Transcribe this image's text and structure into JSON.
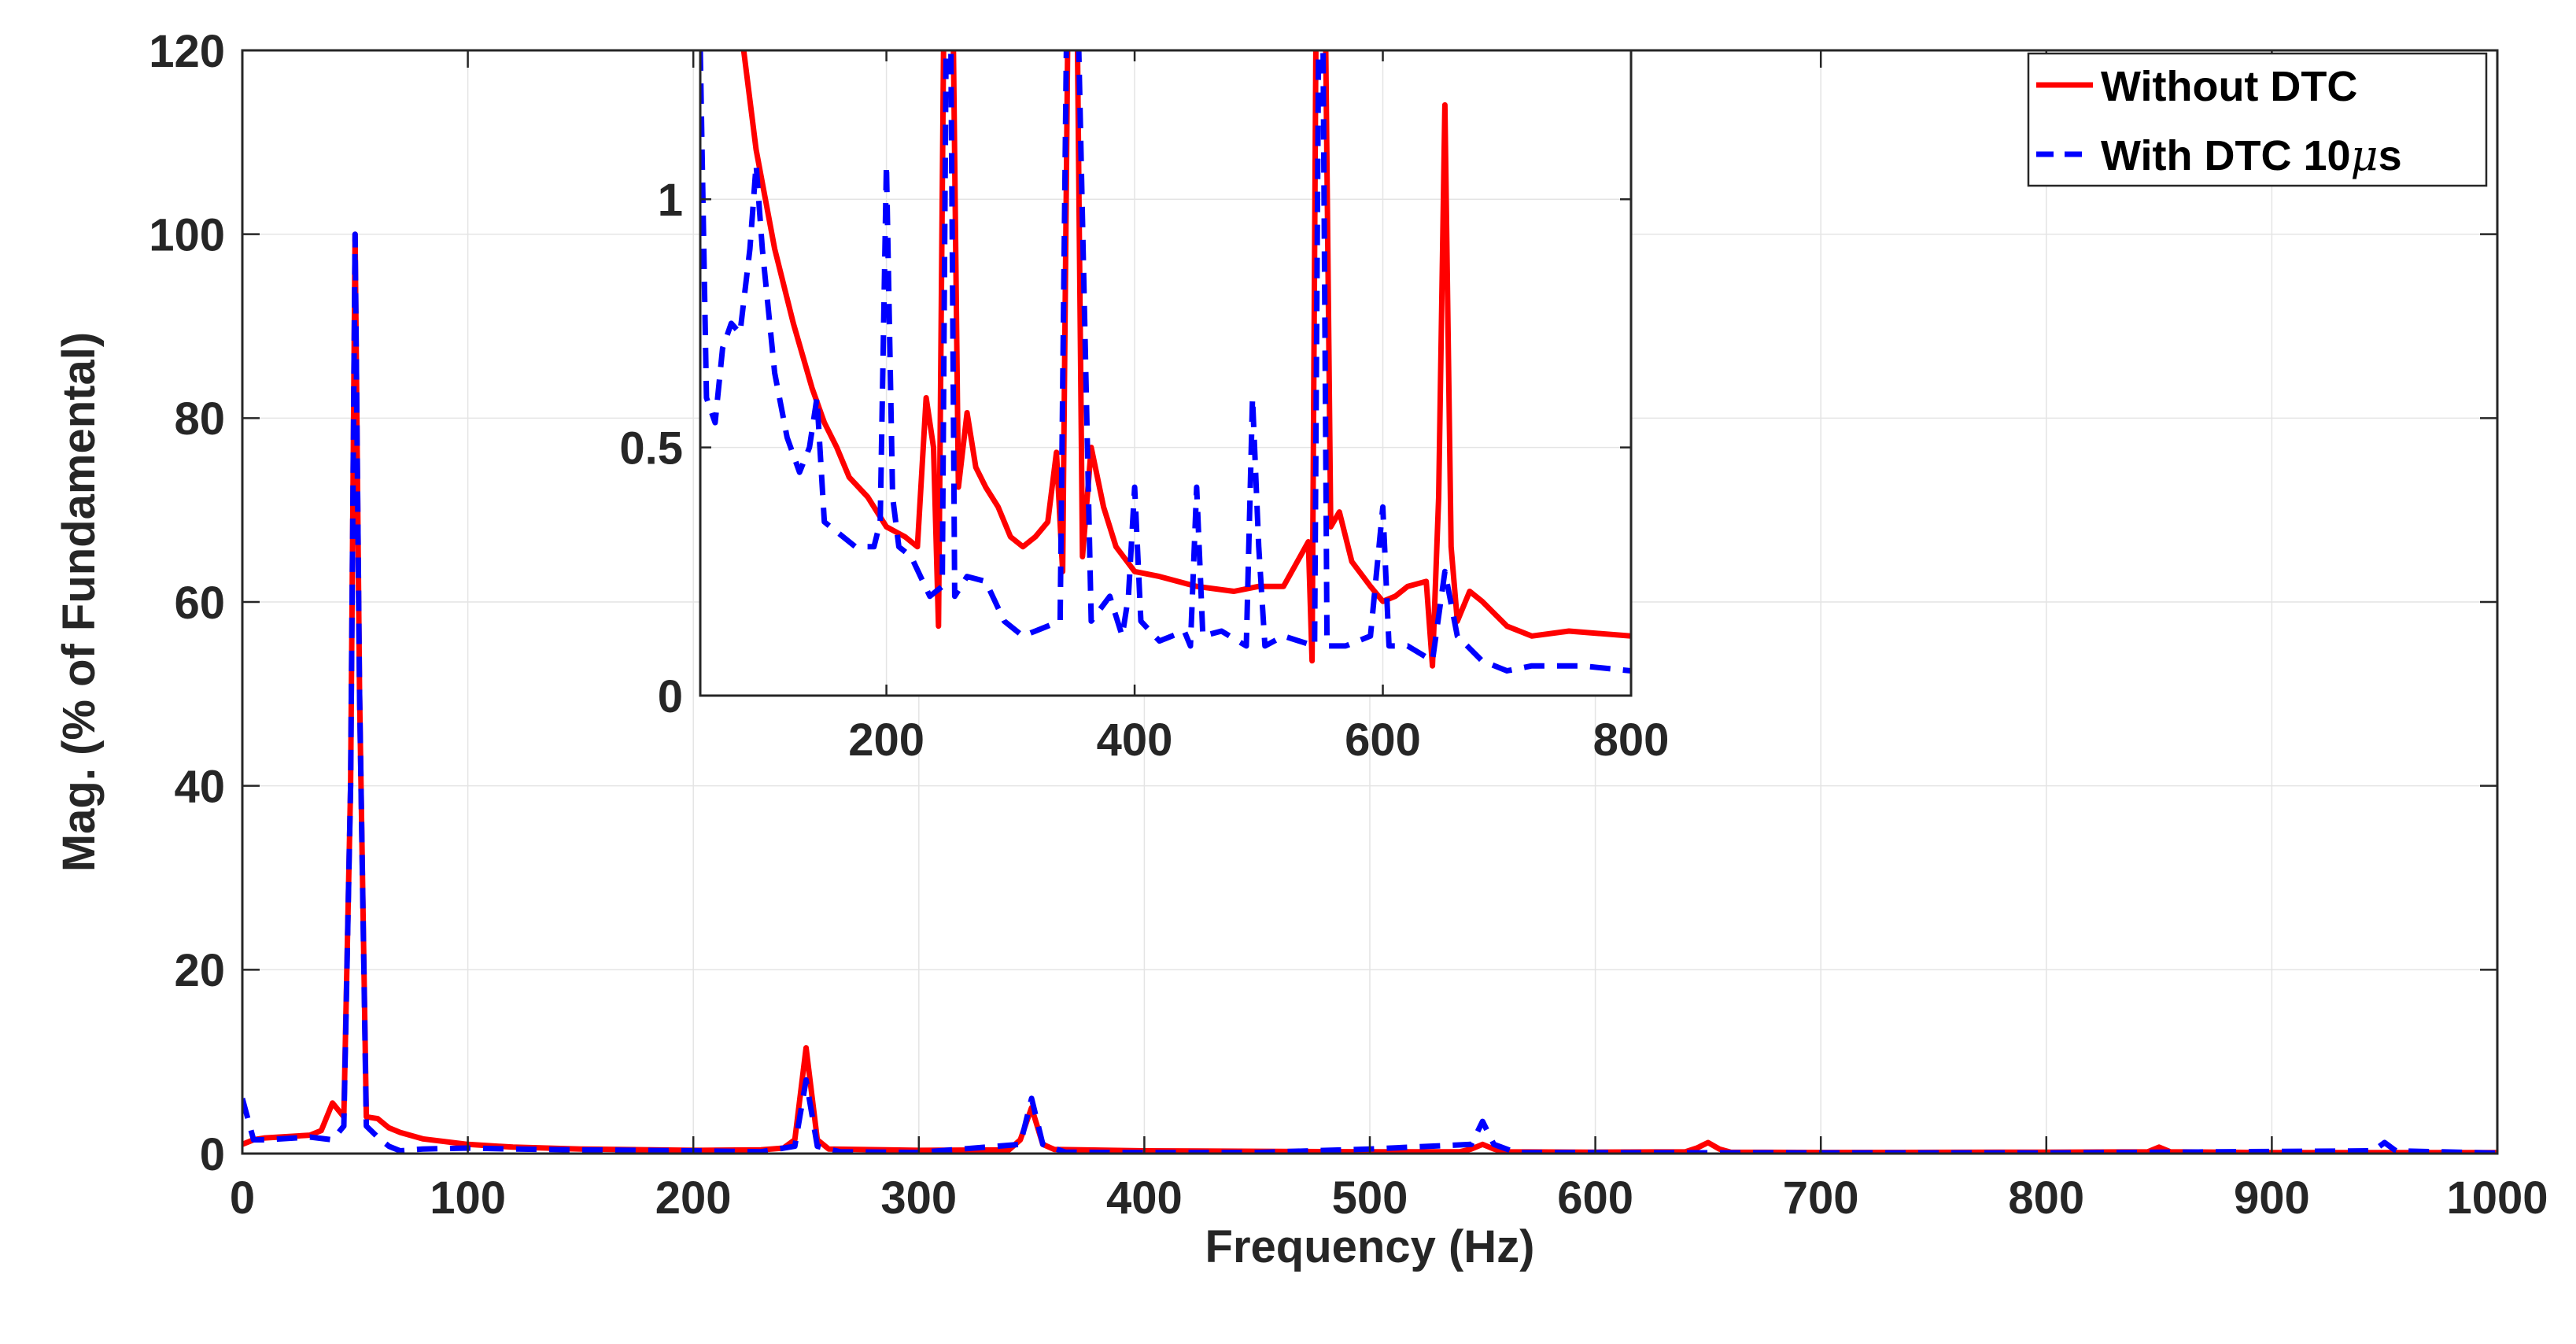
{
  "chart_data": [
    {
      "type": "line",
      "xlabel": "Frequency (Hz)",
      "ylabel": "Mag. (% of Fundamental)",
      "xlim": [
        0,
        1000
      ],
      "ylim": [
        0,
        120
      ],
      "xticks": [
        0,
        100,
        200,
        300,
        400,
        500,
        600,
        700,
        800,
        900,
        1000
      ],
      "yticks": [
        0,
        20,
        40,
        60,
        80,
        100,
        120
      ],
      "grid": true,
      "legend_position": "top-right",
      "series": [
        {
          "name": "Without DTC",
          "color": "#ff0000",
          "style": "solid",
          "x": [
            0,
            5,
            10,
            30,
            35,
            40,
            45,
            48,
            50,
            52,
            55,
            60,
            65,
            70,
            80,
            100,
            120,
            150,
            200,
            230,
            240,
            245,
            250,
            255,
            260,
            300,
            340,
            345,
            350,
            355,
            360,
            400,
            500,
            540,
            545,
            550,
            555,
            560,
            600,
            640,
            645,
            650,
            655,
            660,
            700,
            800,
            845,
            850,
            855,
            900,
            1000
          ],
          "y": [
            1.0,
            1.5,
            1.7,
            2.0,
            2.5,
            5.5,
            4.0,
            40,
            100,
            50,
            4.0,
            3.8,
            2.8,
            2.3,
            1.6,
            1.0,
            0.7,
            0.5,
            0.35,
            0.4,
            0.6,
            1.5,
            11.5,
            1.5,
            0.5,
            0.35,
            0.4,
            1.5,
            5.0,
            1.0,
            0.45,
            0.3,
            0.2,
            0.2,
            0.5,
            1.0,
            0.5,
            0.2,
            0.15,
            0.2,
            0.6,
            1.2,
            0.5,
            0.15,
            0.12,
            0.15,
            0.2,
            0.7,
            0.2,
            0.1,
            0.1
          ]
        },
        {
          "name": "With DTC 10μs",
          "color": "#0000ff",
          "style": "dashed",
          "x": [
            0,
            5,
            10,
            30,
            40,
            45,
            48,
            50,
            52,
            55,
            60,
            65,
            70,
            75,
            80,
            100,
            120,
            150,
            200,
            230,
            245,
            250,
            255,
            265,
            300,
            345,
            350,
            355,
            365,
            400,
            450,
            500,
            545,
            550,
            555,
            565,
            600,
            700,
            800,
            945,
            950,
            955,
            1000
          ],
          "y": [
            6.0,
            1.5,
            1.5,
            1.8,
            1.5,
            3.0,
            40,
            100,
            50,
            3.0,
            1.8,
            0.8,
            0.3,
            0.4,
            0.5,
            0.6,
            0.5,
            0.4,
            0.3,
            0.2,
            0.8,
            8.0,
            0.8,
            0.2,
            0.12,
            1.0,
            6.0,
            1.0,
            0.15,
            0.1,
            0.12,
            0.5,
            1.0,
            3.5,
            1.0,
            0.1,
            0.1,
            0.08,
            0.07,
            0.3,
            1.2,
            0.3,
            0.05
          ]
        }
      ]
    },
    {
      "type": "line",
      "inset": true,
      "xlim": [
        50,
        800
      ],
      "ylim": [
        0,
        1.3
      ],
      "xticks": [
        200,
        400,
        600,
        800
      ],
      "yticks": [
        0,
        0.5,
        1
      ],
      "ytick_labels": [
        "0",
        "0.5",
        "1"
      ],
      "grid": true,
      "series": [
        {
          "name": "Without DTC",
          "color": "#ff0000",
          "style": "solid",
          "x": [
            85,
            95,
            110,
            125,
            140,
            150,
            160,
            170,
            185,
            200,
            215,
            225,
            232,
            238,
            242,
            246,
            250,
            254,
            258,
            265,
            272,
            280,
            290,
            300,
            310,
            320,
            330,
            337,
            342,
            346,
            350,
            354,
            358,
            365,
            375,
            385,
            400,
            420,
            450,
            480,
            500,
            520,
            540,
            543,
            546,
            550,
            554,
            558,
            565,
            575,
            590,
            600,
            610,
            620,
            635,
            640,
            645,
            650,
            655,
            660,
            670,
            680,
            700,
            720,
            750,
            800
          ],
          "y": [
            1.3,
            1.1,
            0.9,
            0.75,
            0.62,
            0.55,
            0.5,
            0.44,
            0.4,
            0.34,
            0.32,
            0.3,
            0.6,
            0.5,
            0.14,
            1.3,
            2.0,
            1.3,
            0.42,
            0.57,
            0.46,
            0.42,
            0.38,
            0.32,
            0.3,
            0.32,
            0.35,
            0.49,
            0.25,
            1.3,
            2.0,
            1.3,
            0.28,
            0.5,
            0.38,
            0.3,
            0.25,
            0.24,
            0.22,
            0.21,
            0.22,
            0.22,
            0.31,
            0.07,
            1.3,
            2.0,
            1.3,
            0.34,
            0.37,
            0.27,
            0.22,
            0.19,
            0.2,
            0.22,
            0.23,
            0.06,
            0.4,
            1.19,
            0.3,
            0.15,
            0.21,
            0.19,
            0.14,
            0.12,
            0.13,
            0.12
          ]
        },
        {
          "name": "With DTC 10μs",
          "color": "#0000ff",
          "style": "dashed",
          "x": [
            50,
            55,
            62,
            68,
            75,
            82,
            90,
            95,
            100,
            110,
            120,
            130,
            138,
            144,
            150,
            160,
            175,
            190,
            195,
            200,
            205,
            210,
            220,
            235,
            245,
            250,
            255,
            265,
            280,
            295,
            310,
            320,
            340,
            345,
            350,
            355,
            365,
            380,
            390,
            395,
            400,
            405,
            420,
            440,
            445,
            450,
            455,
            470,
            490,
            495,
            500,
            505,
            520,
            545,
            550,
            555,
            570,
            590,
            600,
            605,
            620,
            640,
            650,
            660,
            680,
            700,
            720,
            760,
            800
          ],
          "y": [
            1.3,
            0.6,
            0.55,
            0.7,
            0.75,
            0.73,
            0.9,
            1.07,
            0.9,
            0.65,
            0.52,
            0.45,
            0.5,
            0.6,
            0.35,
            0.33,
            0.3,
            0.3,
            0.35,
            1.07,
            0.4,
            0.3,
            0.28,
            0.2,
            0.22,
            2.0,
            0.2,
            0.24,
            0.23,
            0.15,
            0.12,
            0.13,
            0.15,
            1.3,
            2.0,
            1.3,
            0.15,
            0.2,
            0.12,
            0.2,
            0.42,
            0.15,
            0.11,
            0.13,
            0.1,
            0.42,
            0.12,
            0.13,
            0.1,
            0.6,
            0.3,
            0.1,
            0.12,
            0.1,
            2.0,
            0.1,
            0.1,
            0.12,
            0.38,
            0.1,
            0.1,
            0.07,
            0.25,
            0.12,
            0.07,
            0.05,
            0.06,
            0.06,
            0.05
          ]
        }
      ]
    }
  ],
  "legend": {
    "entries": [
      "Without DTC",
      "With DTC 10"
    ],
    "mu_glyph": "μ",
    "unit_suffix": "s"
  }
}
